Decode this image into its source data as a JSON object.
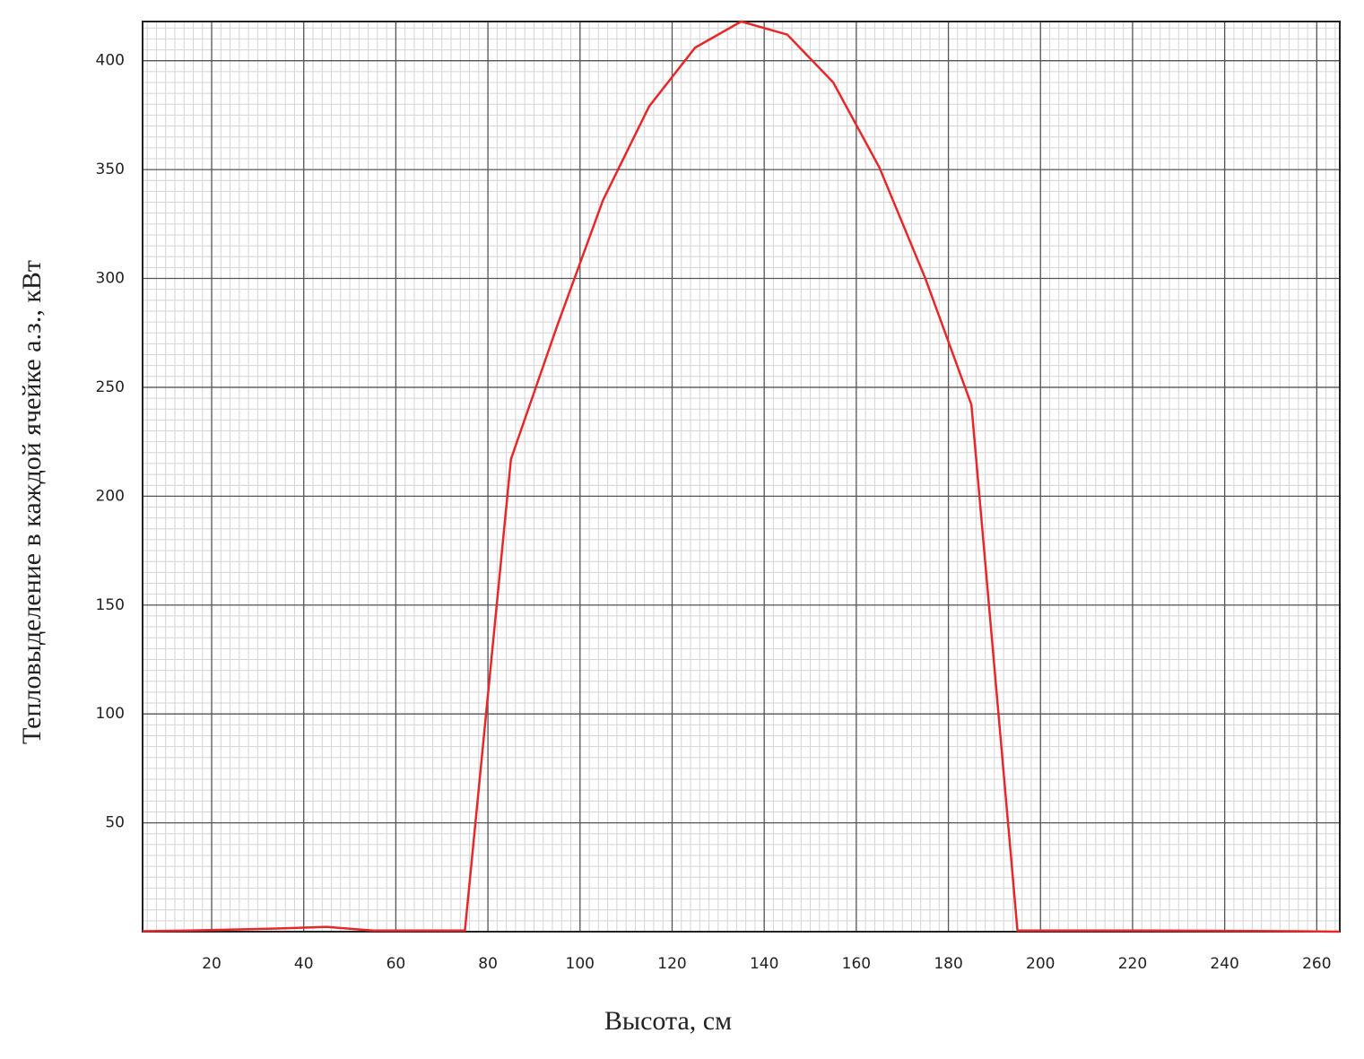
{
  "chart_data": {
    "type": "line",
    "xlabel": "Высота, см",
    "ylabel": "Тепловыделение в каждой ячейке а.з., кВт",
    "x": [
      5,
      15,
      25,
      35,
      45,
      55,
      65,
      75,
      85,
      95,
      105,
      115,
      125,
      135,
      145,
      155,
      165,
      175,
      185,
      195,
      205,
      215,
      225,
      235,
      245,
      255,
      265
    ],
    "series": [
      {
        "color": "#e8272a",
        "values": [
          0.2,
          0.5,
          1,
          1.5,
          2.2,
          0.5,
          0.5,
          0.5,
          217,
          278,
          336,
          379,
          406,
          418,
          412,
          390,
          351,
          300,
          242,
          0.5,
          0.5,
          0.5,
          0.5,
          0.4,
          0.3,
          0.2,
          0
        ]
      }
    ],
    "xlim": [
      5,
      265
    ],
    "ylim": [
      0,
      418
    ],
    "xticks": [
      20,
      40,
      60,
      80,
      100,
      120,
      140,
      160,
      180,
      200,
      220,
      240,
      260
    ],
    "yticks": [
      50,
      100,
      150,
      200,
      250,
      300,
      350,
      400
    ],
    "grid": true,
    "minor_grid": {
      "x": 2,
      "y": 5
    }
  }
}
